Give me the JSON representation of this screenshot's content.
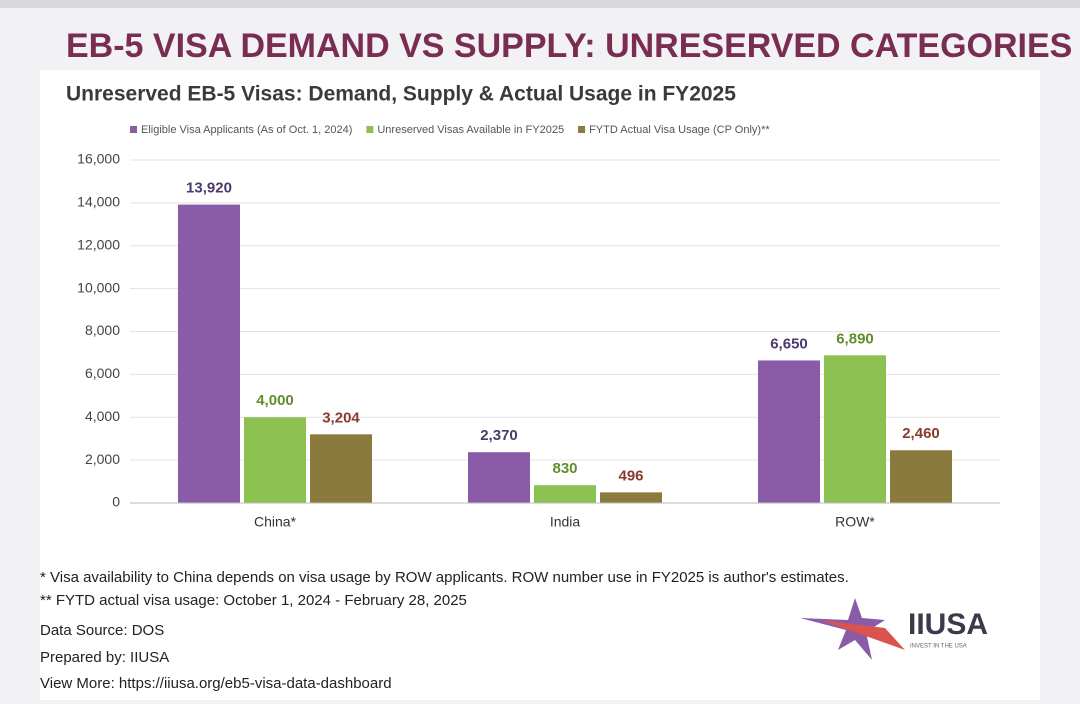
{
  "title": "EB-5 VISA DEMAND VS SUPPLY: UNRESERVED CATEGORIES",
  "chart_data": {
    "type": "bar",
    "title": "Unreserved EB-5 Visas: Demand, Supply & Actual Usage in FY2025",
    "categories": [
      "China*",
      "India",
      "ROW*"
    ],
    "series": [
      {
        "name": "Eligible Visa Applicants (As of Oct. 1, 2024)",
        "color": "#8a5ca8",
        "values": [
          13920,
          2370,
          6650
        ],
        "value_labels": [
          "13,920",
          "2,370",
          "6,650"
        ]
      },
      {
        "name": "Unreserved Visas Available in FY2025",
        "color": "#8cc152",
        "values": [
          4000,
          830,
          6890
        ],
        "value_labels": [
          "4,000",
          "830",
          "6,890"
        ]
      },
      {
        "name": "FYTD Actual Visa Usage (CP Only)**",
        "color": "#8a7a3e",
        "values": [
          3204,
          496,
          2460
        ],
        "value_labels": [
          "3,204",
          "496",
          "2,460"
        ]
      }
    ],
    "ylim": [
      0,
      16000
    ],
    "yticks": [
      0,
      {
        "value": 2000,
        "label": "2,000"
      },
      {
        "value": 4000,
        "label": "4,000"
      },
      {
        "value": 6000,
        "label": "6,000"
      },
      {
        "value": 8000,
        "label": "8,000"
      },
      {
        "value": 10000,
        "label": "10,000"
      },
      {
        "value": 12000,
        "label": "12,000"
      },
      {
        "value": 14000,
        "label": "14,000"
      },
      {
        "value": 16000,
        "label": "16,000"
      }
    ],
    "grid": true,
    "legend": "top"
  },
  "footnotes": [
    "* Visa availability to China depends on visa usage by ROW applicants. ROW number use in FY2025 is author's estimates.",
    "** FYTD actual visa usage: October 1, 2024 - February 28, 2025",
    "Data Source: DOS",
    "Prepared by: IIUSA",
    "View More: https://iiusa.org/eb5-visa-data-dashboard"
  ],
  "logo": {
    "name": "IIUSA",
    "tagline": "INVEST IN THE USA"
  }
}
